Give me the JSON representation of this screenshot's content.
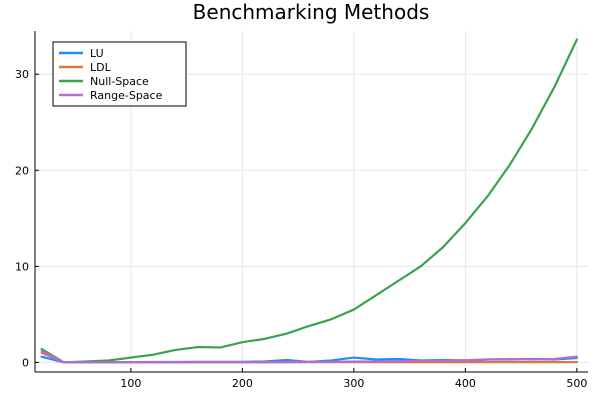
{
  "chart_data": {
    "type": "line",
    "title": "Benchmarking Methods",
    "xlabel": "",
    "ylabel": "",
    "xlim": [
      14,
      510
    ],
    "ylim": [
      -1,
      34.5
    ],
    "xticks": [
      100,
      200,
      300,
      400,
      500
    ],
    "yticks": [
      0,
      10,
      20,
      30
    ],
    "grid": true,
    "legend_position": "top-left",
    "x": [
      20,
      40,
      60,
      80,
      100,
      120,
      140,
      160,
      180,
      200,
      220,
      240,
      260,
      280,
      300,
      320,
      340,
      360,
      380,
      400,
      420,
      440,
      460,
      480,
      500
    ],
    "series": [
      {
        "name": "LU",
        "color": "#1f8ef1",
        "values": [
          0.6,
          0.0,
          0.02,
          0.02,
          0.03,
          0.04,
          0.04,
          0.05,
          0.05,
          0.05,
          0.1,
          0.25,
          0.05,
          0.2,
          0.5,
          0.3,
          0.35,
          0.2,
          0.25,
          0.2,
          0.3,
          0.3,
          0.35,
          0.3,
          0.45
        ]
      },
      {
        "name": "LDL",
        "color": "#e0743a",
        "values": [
          1.0,
          0.0,
          0.0,
          0.0,
          0.01,
          0.01,
          0.01,
          0.01,
          0.01,
          0.01,
          0.01,
          0.01,
          0.02,
          0.02,
          0.02,
          0.02,
          0.02,
          0.02,
          0.02,
          0.03,
          0.03,
          0.03,
          0.03,
          0.03,
          0.03
        ]
      },
      {
        "name": "Null-Space",
        "color": "#3ba150",
        "values": [
          1.4,
          0.0,
          0.1,
          0.2,
          0.5,
          0.8,
          1.3,
          1.6,
          1.55,
          2.1,
          2.45,
          3.0,
          3.8,
          4.5,
          5.5,
          7.0,
          8.5,
          10.0,
          12.0,
          14.5,
          17.3,
          20.6,
          24.4,
          28.7,
          33.6
        ]
      },
      {
        "name": "Range-Space",
        "color": "#b06ed6",
        "values": [
          1.2,
          0.0,
          0.0,
          0.0,
          0.0,
          0.0,
          0.0,
          0.02,
          0.02,
          0.02,
          0.03,
          0.05,
          0.05,
          0.06,
          0.08,
          0.1,
          0.12,
          0.15,
          0.18,
          0.22,
          0.3,
          0.35,
          0.3,
          0.35,
          0.6
        ]
      }
    ]
  }
}
